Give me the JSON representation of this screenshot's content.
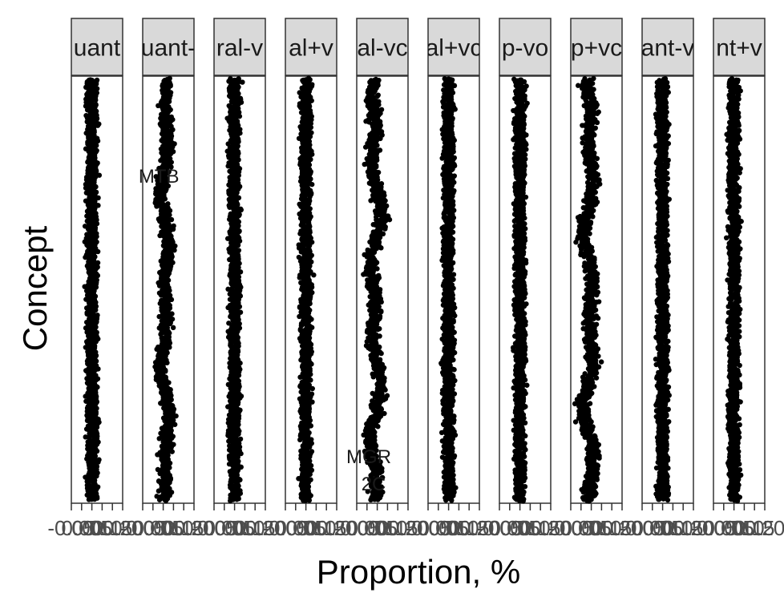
{
  "chart_data": {
    "type": "scatter",
    "xlabel": "Proportion, %",
    "ylabel": "Concept",
    "grid": false,
    "legend": "none",
    "colors": {
      "points": "#000000",
      "strip_fill": "#d9d9d9",
      "panel_border": "#333333",
      "tick_text": "#4d4d4d"
    },
    "panels": [
      {
        "strip": "uant",
        "xlim": [
          -0.05,
          0.2
        ],
        "tick_labels": [
          "-0.05",
          "0.00",
          "0.05",
          "0.10",
          "0.15",
          "0.20"
        ],
        "center": 0.05,
        "spread": 0.03,
        "wobble": 0,
        "labels": []
      },
      {
        "strip": "uant-",
        "xlim": [
          -0.05,
          0.2
        ],
        "tick_labels": [
          "-0.05",
          "0.00",
          "0.05",
          "0.10",
          "0.15",
          "0.20"
        ],
        "center": 0.06,
        "spread": 0.04,
        "wobble": 0.02,
        "labels": [
          "MTB"
        ]
      },
      {
        "strip": "ral-v",
        "xlim": [
          -0.05,
          0.2
        ],
        "tick_labels": [
          "-0.05",
          "0.00",
          "0.05",
          "0.10",
          "0.15",
          "0.20"
        ],
        "center": 0.05,
        "spread": 0.03,
        "wobble": 0,
        "labels": []
      },
      {
        "strip": "al+v",
        "xlim": [
          -0.05,
          0.2
        ],
        "tick_labels": [
          "-0.05",
          "0.00",
          "0.05",
          "0.10",
          "0.15",
          "0.20"
        ],
        "center": 0.05,
        "spread": 0.03,
        "wobble": 0,
        "labels": []
      },
      {
        "strip": "al-vc",
        "xlim": [
          -0.05,
          0.2
        ],
        "tick_labels": [
          "-0.05",
          "0.00",
          "0.05",
          "0.10",
          "0.15",
          "0.20"
        ],
        "center": 0.04,
        "spread": 0.05,
        "wobble": 0.03,
        "labels": [
          "MGR",
          "2C"
        ]
      },
      {
        "strip": "al+vc",
        "xlim": [
          -0.05,
          0.2
        ],
        "tick_labels": [
          "-0.05",
          "0.00",
          "0.05",
          "0.10",
          "0.15",
          "0.20"
        ],
        "center": 0.05,
        "spread": 0.03,
        "wobble": 0,
        "labels": []
      },
      {
        "strip": "p-vo",
        "xlim": [
          -0.05,
          0.2
        ],
        "tick_labels": [
          "-0.05",
          "0.00",
          "0.05",
          "0.10",
          "0.15",
          "0.20"
        ],
        "center": 0.05,
        "spread": 0.03,
        "wobble": 0,
        "labels": []
      },
      {
        "strip": "p+vc",
        "xlim": [
          -0.05,
          0.2
        ],
        "tick_labels": [
          "-0.05",
          "0.00",
          "0.05",
          "0.10",
          "0.15",
          "0.20"
        ],
        "center": 0.04,
        "spread": 0.05,
        "wobble": 0.03,
        "labels": []
      },
      {
        "strip": "ant-v",
        "xlim": [
          -0.05,
          0.2
        ],
        "tick_labels": [
          "-0.05",
          "0.00",
          "0.05",
          "0.10",
          "0.15",
          "0.20"
        ],
        "center": 0.05,
        "spread": 0.03,
        "wobble": 0,
        "labels": []
      },
      {
        "strip": "nt+v",
        "xlim": [
          -0.05,
          0.2
        ],
        "tick_labels": [
          "-0.05",
          "0.00",
          "0.05",
          "0.10",
          "0.15",
          "0.20"
        ],
        "center": 0.05,
        "spread": 0.03,
        "wobble": 0,
        "labels": []
      }
    ]
  }
}
